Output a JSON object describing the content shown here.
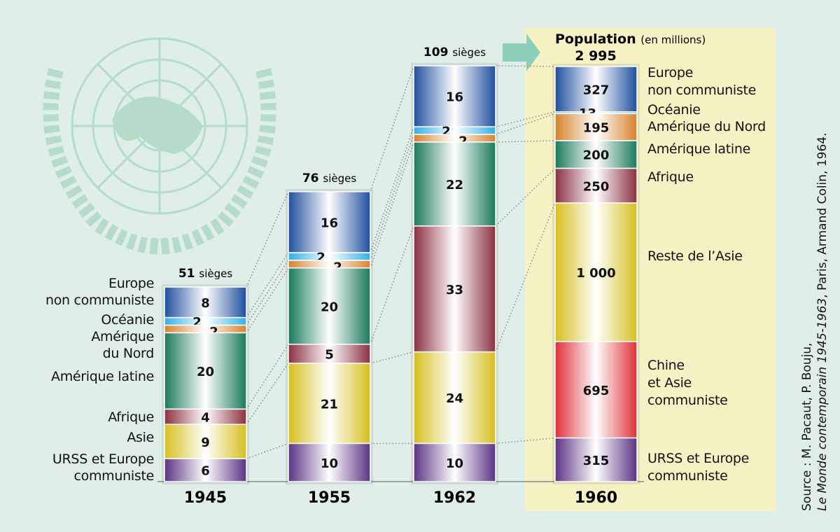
{
  "chart_data": {
    "type": "bar",
    "stacked": true,
    "categories": [
      "1945",
      "1955",
      "1962"
    ],
    "column_titles": [
      "51 sièges",
      "76 sièges",
      "109 sièges"
    ],
    "series": [
      {
        "name": "Europe non communiste",
        "values": [
          8,
          16,
          16
        ],
        "color": "#1f4f9f"
      },
      {
        "name": "Océanie",
        "values": [
          2,
          2,
          2
        ],
        "color": "#2eb0e6"
      },
      {
        "name": "Amérique du Nord",
        "values": [
          2,
          2,
          2
        ],
        "color": "#d7822c"
      },
      {
        "name": "Amérique latine",
        "values": [
          20,
          20,
          22
        ],
        "color": "#1a7a5c"
      },
      {
        "name": "Afrique",
        "values": [
          4,
          5,
          33
        ],
        "color": "#8c2f40"
      },
      {
        "name": "Asie",
        "values": [
          9,
          21,
          24
        ],
        "color": "#d6bf1e"
      },
      {
        "name": "URSS et Europe communiste",
        "values": [
          6,
          10,
          10
        ],
        "color": "#5b3384"
      }
    ],
    "left_labels": [
      [
        "Europe",
        "non communiste"
      ],
      [
        "Océanie"
      ],
      [
        "Amérique",
        "du Nord"
      ],
      [
        "Amérique latine"
      ],
      [
        "Afrique"
      ],
      [
        "Asie"
      ],
      [
        "URSS et Europe",
        "communiste"
      ]
    ],
    "population": {
      "category": "1960",
      "title": "Population",
      "unit": "(en millions)",
      "total": "2 995",
      "segments": [
        {
          "name": "Europe non communiste",
          "label": [
            "Europe",
            "non communiste"
          ],
          "value": 327,
          "display": "327",
          "color": "#1f4f9f"
        },
        {
          "name": "Océanie",
          "label": [
            "Océanie"
          ],
          "value": 13,
          "display": "13",
          "color": "#2eb0e6"
        },
        {
          "name": "Amérique du Nord",
          "label": [
            "Amérique du Nord"
          ],
          "value": 195,
          "display": "195",
          "color": "#d7822c"
        },
        {
          "name": "Amérique latine",
          "label": [
            "Amérique latine"
          ],
          "value": 200,
          "display": "200",
          "color": "#1a7a5c"
        },
        {
          "name": "Afrique",
          "label": [
            "Afrique"
          ],
          "value": 250,
          "display": "250",
          "color": "#8c2f40"
        },
        {
          "name": "Reste de l'Asie",
          "label": [
            "Reste de l’Asie"
          ],
          "value": 1000,
          "display": "1 000",
          "color": "#d6bf1e"
        },
        {
          "name": "Chine et Asie communiste",
          "label": [
            "Chine",
            "et Asie",
            "communiste"
          ],
          "value": 695,
          "display": "695",
          "color": "#e0303a"
        },
        {
          "name": "URSS et Europe communiste",
          "label": [
            "URSS et Europe",
            "communiste"
          ],
          "value": 315,
          "display": "315",
          "color": "#5b3384"
        }
      ]
    },
    "panel_color": "#f6f2c4",
    "arrow_color": "#8fd0bd"
  },
  "source": {
    "line1": "Source : M. Pacaut, P. Bouju,",
    "line2_italic": "Le Monde contemporain 1945-1963",
    "line2_rest": ", Paris, Armand Colin, 1964."
  }
}
